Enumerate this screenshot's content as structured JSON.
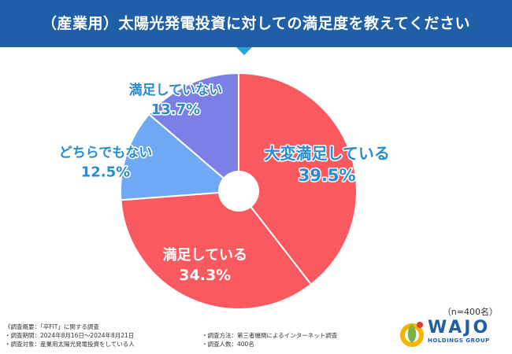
{
  "chart_data": {
    "type": "pie",
    "donut": true,
    "title": "（産業用）太陽光発電投資に対しての満足度を教えてください",
    "categories": [
      "大変満足している",
      "満足している",
      "どちらでもない",
      "満足していない"
    ],
    "values": [
      39.5,
      34.3,
      12.5,
      13.7
    ],
    "value_labels": [
      "39.5%",
      "34.3%",
      "12.5%",
      "13.7%"
    ],
    "colors": [
      "#fa5a5f",
      "#fa5a5f",
      "#6fa8f5",
      "#7b7fe6"
    ],
    "label_colors": [
      "#2a8cd0",
      "#ffffff",
      "#2a8cd0",
      "#2a8cd0"
    ],
    "sample_size": "（n=400名）"
  },
  "notes": {
    "overview": "《調査概要：「卒FIT」に関する調査",
    "period": "・調査期間：2024年8月16日～2024年8月21日",
    "target": "・調査対象：産業用太陽光発電投資をしている人",
    "method": "・調査方法：第三者機関によるインターネット調査",
    "count": "・調査人数：400名"
  },
  "logo": {
    "name": "WAJO",
    "subtitle": "HOLDINGS GROUP"
  }
}
